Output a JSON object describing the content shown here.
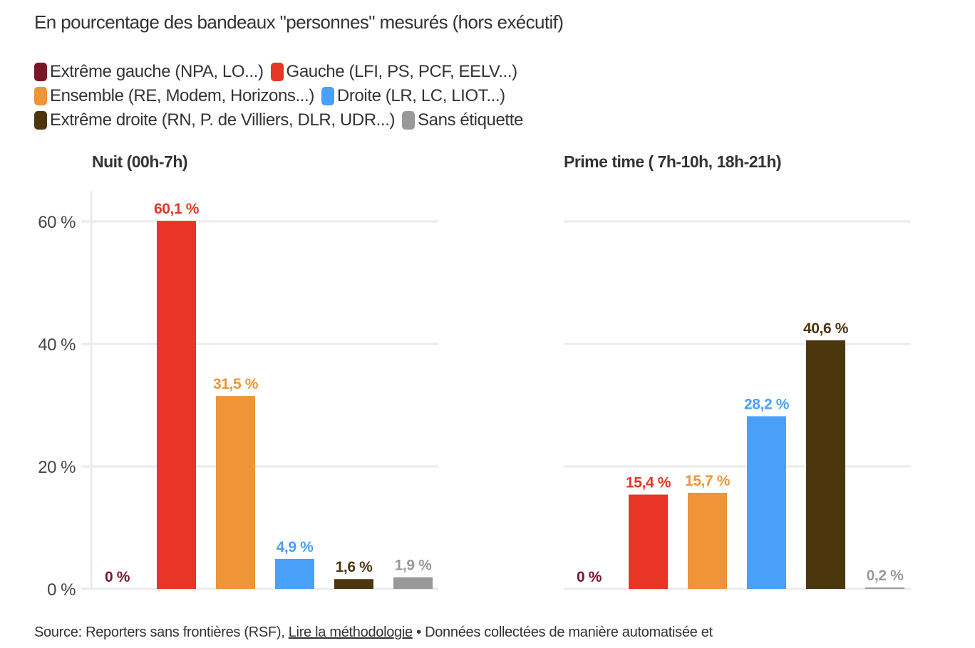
{
  "subtitle": "En pourcentage des bandeaux \"personnes\" mesurés (hors exécutif)",
  "legend": [
    {
      "label": "Extrême gauche (NPA, LO...)",
      "color": "#7a1427"
    },
    {
      "label": "Gauche (LFI, PS, PCF, EELV...)",
      "color": "#e83525"
    },
    {
      "label": "Ensemble (RE, Modem, Horizons...)",
      "color": "#f09537"
    },
    {
      "label": "Droite (LR, LC, LIOT...)",
      "color": "#48a0f8"
    },
    {
      "label": "Extrême droite (RN, P. de Villiers, DLR, UDR...)",
      "color": "#4c360e"
    },
    {
      "label": "Sans étiquette",
      "color": "#999999"
    }
  ],
  "footer": {
    "source_prefix": "Source: Reporters sans frontières (RSF),",
    "link_label": "Lire la méthodologie",
    "suffix": "• Données collectées de manière automatisée et"
  },
  "chart_data": [
    {
      "type": "bar",
      "title": "Nuit (00h-7h)",
      "categories": [
        "Extrême gauche",
        "Gauche",
        "Ensemble",
        "Droite",
        "Extrême droite",
        "Sans étiquette"
      ],
      "values": [
        0,
        60.1,
        31.5,
        4.9,
        1.6,
        1.9
      ],
      "value_labels": [
        "0 %",
        "60,1 %",
        "31,5 %",
        "4,9 %",
        "1,6 %",
        "1,9 %"
      ],
      "colors": [
        "#7a1427",
        "#e83525",
        "#f09537",
        "#48a0f8",
        "#4c360e",
        "#999999"
      ],
      "yticks": [
        0,
        20,
        40,
        60
      ],
      "ytick_labels": [
        "0 %",
        "20 %",
        "40 %",
        "60 %"
      ],
      "ylim": [
        0,
        60
      ],
      "xlabel": "",
      "ylabel": "",
      "grid": true
    },
    {
      "type": "bar",
      "title": "Prime time ( 7h-10h, 18h-21h)",
      "categories": [
        "Extrême gauche",
        "Gauche",
        "Ensemble",
        "Droite",
        "Extrême droite",
        "Sans étiquette"
      ],
      "values": [
        0,
        15.4,
        15.7,
        28.2,
        40.6,
        0.2
      ],
      "value_labels": [
        "0 %",
        "15,4 %",
        "15,7 %",
        "28,2 %",
        "40,6 %",
        "0,2 %"
      ],
      "colors": [
        "#7a1427",
        "#e83525",
        "#f09537",
        "#48a0f8",
        "#4c360e",
        "#999999"
      ],
      "yticks": [
        0,
        20,
        40,
        60
      ],
      "ytick_labels": [],
      "ylim": [
        0,
        60
      ],
      "xlabel": "",
      "ylabel": "",
      "grid": true
    }
  ]
}
